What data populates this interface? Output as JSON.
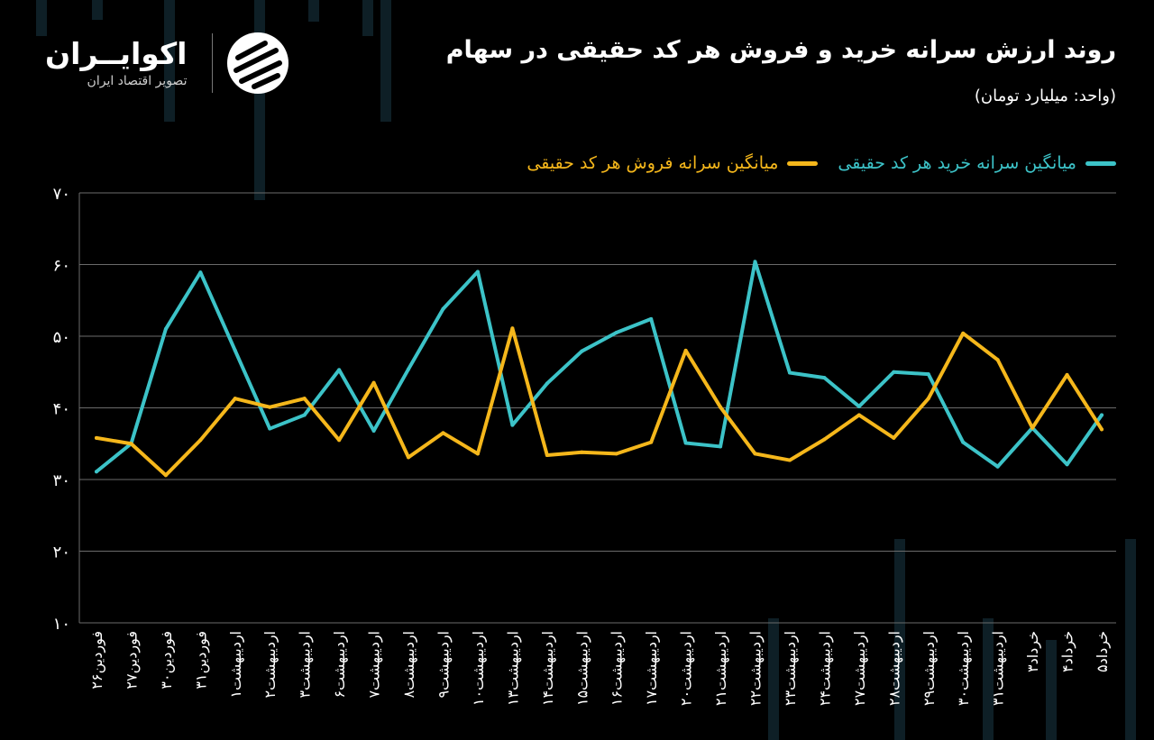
{
  "header": {
    "title": "روند ارزش سرانه خرید و فروش هر کد حقیقی در سهام",
    "subtitle": "(واحد: میلیارد تومان)"
  },
  "logo": {
    "name": "اکوایــران",
    "tagline": "تصویر اقتصاد ایران",
    "icon": "ecoiran-stripes-icon"
  },
  "colors": {
    "buy": "#3cc3c8",
    "sell": "#f5b71b",
    "background": "#000000",
    "grid": "#6b6b6b"
  },
  "chart_data": {
    "type": "line",
    "title": "روند ارزش سرانه خرید و فروش هر کد حقیقی در سهام",
    "ylabel": "",
    "xlabel": "",
    "ylim": [
      10,
      70
    ],
    "yticks": [
      "۱۰",
      "۲۰",
      "۳۰",
      "۴۰",
      "۵۰",
      "۶۰",
      "۷۰"
    ],
    "grid": true,
    "legend_position": "top-right",
    "categories": [
      "فوردین۲۶",
      "فوردین۲۷",
      "فوردین۳۰",
      "فوردین۳۱",
      "اردیبهشت۱",
      "اردیبهشت۲",
      "اردیبهشت۳",
      "اردیبهشت۶",
      "اردیبهشت۷",
      "اردیبهشت۸",
      "اردیبهشت۹",
      "اردیبهشت۱۰",
      "اردیبهشت۱۳",
      "اردیبهشت۱۴",
      "اردیبهشت۱۵",
      "اردیبهشت۱۶",
      "اردیبهشت۱۷",
      "اردیبهشت۲۰",
      "اردیبهشت۲۱",
      "اردیبهشت۲۲",
      "اردیبهشت۲۳",
      "اردیبهشت۲۴",
      "اردیبهشت۲۷",
      "اردیبهشت۲۸",
      "اردیبهشت۲۹",
      "اردیبهشت۳۰",
      "اردیبهشت۳۱",
      "خرداد۳",
      "خرداد۴",
      "خرداد۵"
    ],
    "series": [
      {
        "name": "میانگین سرانه خرید هر کد حقیقی",
        "color": "#3cc3c8",
        "values": [
          31.1,
          35,
          51,
          58.9,
          48,
          37.1,
          39,
          45.3,
          36.8,
          45.4,
          53.8,
          59,
          37.6,
          43.4,
          47.9,
          50.5,
          52.4,
          35.1,
          34.6,
          60.4,
          44.9,
          44.2,
          40.2,
          45,
          44.7,
          35.2,
          31.8,
          37.2,
          32.1,
          39
        ]
      },
      {
        "name": "میانگین سرانه فروش هر کد حقیقی",
        "color": "#f5b71b",
        "values": [
          35.8,
          35,
          30.6,
          35.5,
          41.3,
          40.1,
          41.3,
          35.5,
          43.5,
          33.1,
          36.5,
          33.6,
          51.1,
          33.4,
          33.8,
          33.6,
          35.2,
          48,
          40.1,
          33.6,
          32.7,
          35.6,
          39,
          35.8,
          41.3,
          50.4,
          46.7,
          37.2,
          44.6,
          37
        ]
      }
    ]
  }
}
